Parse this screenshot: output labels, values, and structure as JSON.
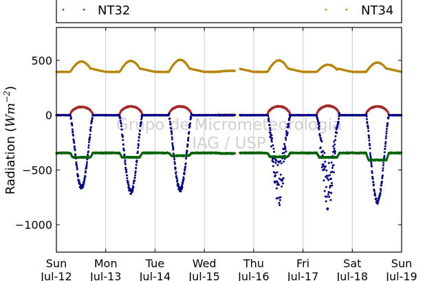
{
  "chart_data": {
    "type": "scatter",
    "title": "",
    "ylabel": "Radiation (Wm⁻²)",
    "ylabel_parts": {
      "text": "Radiation (",
      "unit": "Wm",
      "exp": "−2",
      "close": ")"
    },
    "xlabel": "",
    "xlim": [
      0,
      7
    ],
    "ylim": [
      -1250,
      800
    ],
    "yticks": [
      500,
      0,
      -500,
      -1000
    ],
    "ytick_labels": [
      "500",
      "0",
      "−500",
      "−1000"
    ],
    "xticks": [
      {
        "x": 0,
        "day": "Sun",
        "date": "Jul-12"
      },
      {
        "x": 1,
        "day": "Mon",
        "date": "Jul-13"
      },
      {
        "x": 2,
        "day": "Tue",
        "date": "Jul-14"
      },
      {
        "x": 3,
        "day": "Wed",
        "date": "Jul-15"
      },
      {
        "x": 4,
        "day": "Thu",
        "date": "Jul-16"
      },
      {
        "x": 5,
        "day": "Fri",
        "date": "Jul-17"
      },
      {
        "x": 6,
        "day": "Sat",
        "date": "Jul-18"
      },
      {
        "x": 7,
        "day": "Sun",
        "date": "Jul-19"
      }
    ],
    "grid": "vertical",
    "legend": {
      "placement": "top, above plot",
      "entries": [
        {
          "name": "NT32",
          "color": "#a52a2a"
        },
        {
          "name": "NT34",
          "color": "#b8860b"
        }
      ]
    },
    "watermark": [
      "Grupo de Micrometeorologia",
      "IAG / USP"
    ],
    "data_gap": [
      3.62,
      3.72
    ],
    "series": [
      {
        "name": "NT34",
        "color": "#b8860b",
        "baseline": 395,
        "day_peaks": [
          490,
          495,
          505,
          405,
          500,
          460,
          480
        ],
        "note": "upper incoming-longwave trace, ~400 W/m2 at night, ~500 midday"
      },
      {
        "name": "NT32",
        "color": "#a52a2a",
        "baseline": 0,
        "day_peaks": [
          75,
          80,
          80,
          0,
          80,
          85,
          80
        ],
        "note": "near-zero trace with small daytime bumps"
      },
      {
        "color": "#00008b",
        "baseline": 0,
        "day_minima": [
          -660,
          -700,
          -680,
          0,
          -720,
          -760,
          -790
        ],
        "note": "daytime dips (negative) with scattered points"
      },
      {
        "color": "#006400",
        "baseline": -345,
        "day_minima": [
          -385,
          -385,
          -370,
          -350,
          -380,
          -385,
          -410
        ],
        "note": "lower longwave trace around -350 W/m2"
      }
    ]
  }
}
